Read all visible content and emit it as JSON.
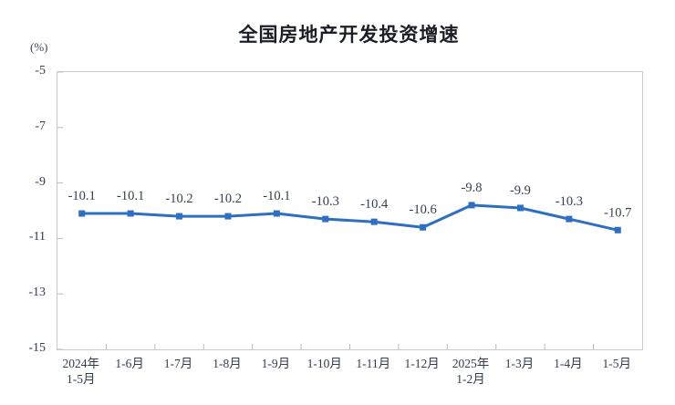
{
  "chart_data": {
    "type": "line",
    "title": "全国房地产开发投资增速",
    "unit_label": "(%)",
    "categories": [
      "2024年\n1-5月",
      "1-6月",
      "1-7月",
      "1-8月",
      "1-9月",
      "1-10月",
      "1-11月",
      "1-12月",
      "2025年\n1-2月",
      "1-3月",
      "1-4月",
      "1-5月"
    ],
    "values": [
      -10.1,
      -10.1,
      -10.2,
      -10.2,
      -10.1,
      -10.3,
      -10.4,
      -10.6,
      -9.8,
      -9.9,
      -10.3,
      -10.7
    ],
    "data_labels": [
      "-10.1",
      "-10.1",
      "-10.2",
      "-10.2",
      "-10.1",
      "-10.3",
      "-10.4",
      "-10.6",
      "-9.8",
      "-9.9",
      "-10.3",
      "-10.7"
    ],
    "xlabel": "",
    "ylabel": "",
    "ylim": [
      -15,
      -5
    ],
    "yticks": [
      -5,
      -7,
      -9,
      -11,
      -13,
      -15
    ],
    "grid": false,
    "legend": "none",
    "colors": {
      "line": "#2E6FC3",
      "marker": "#2E6FC3",
      "data_label": "#333F4F",
      "axis_label": "#323E4E",
      "title": "#1B1E24",
      "plot_border": "#C9C9C9",
      "tick": "#B9B9B9",
      "background": "#FFFFFF"
    }
  }
}
